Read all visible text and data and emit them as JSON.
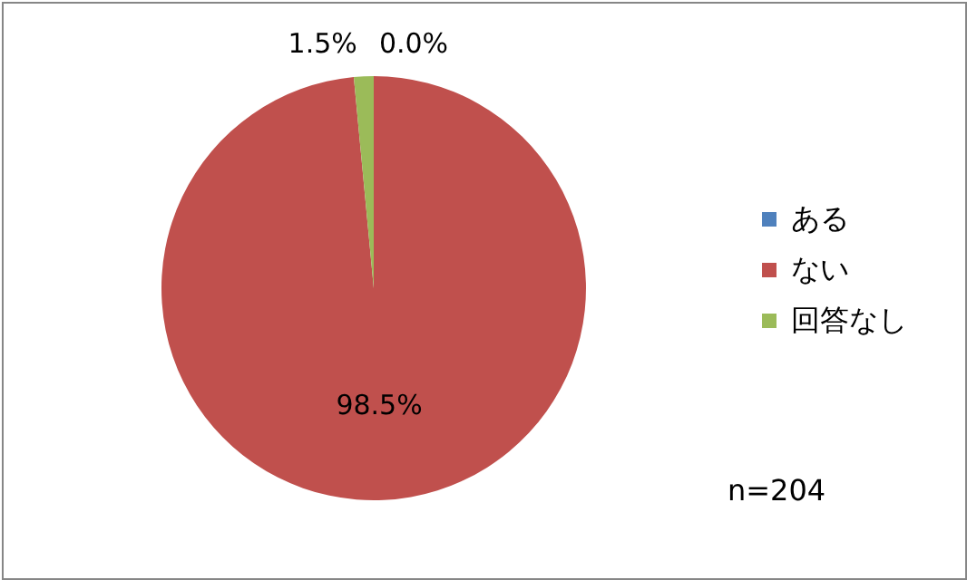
{
  "chart_data": {
    "type": "pie",
    "categories": [
      "ある",
      "ない",
      "回答なし"
    ],
    "values": [
      0.0,
      98.5,
      1.5
    ],
    "colors": [
      "#4f81bd",
      "#c0504d",
      "#9bbb59"
    ],
    "value_labels": [
      "0.0%",
      "98.5%",
      "1.5%"
    ],
    "legend": "right",
    "annotations": [
      "n=204"
    ]
  }
}
